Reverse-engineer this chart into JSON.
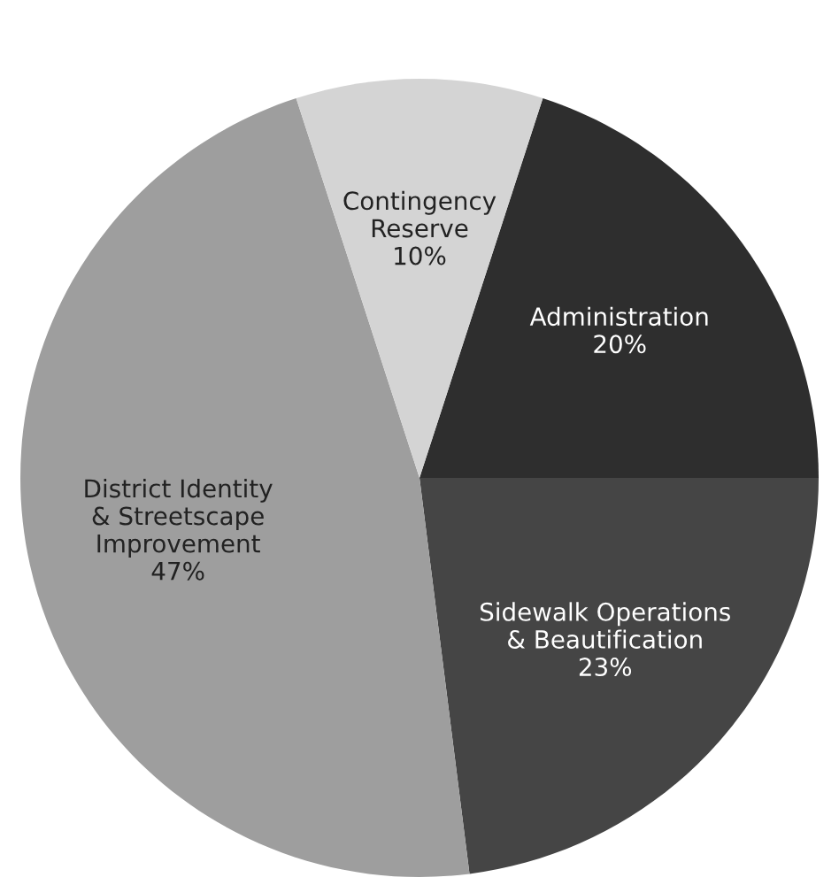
{
  "chart_data": {
    "type": "pie",
    "categories": [
      "Administration",
      "Sidewalk Operations\n& Beautification",
      "District Identity\n& Streetscape\nImprovement",
      "Contingency\nReserve"
    ],
    "values": [
      20,
      23,
      47,
      10
    ],
    "value_labels": [
      "20%",
      "23%",
      "47%",
      "10%"
    ],
    "colors": [
      "#2e2e2e",
      "#454545",
      "#9e9e9e",
      "#d4d4d4"
    ]
  }
}
